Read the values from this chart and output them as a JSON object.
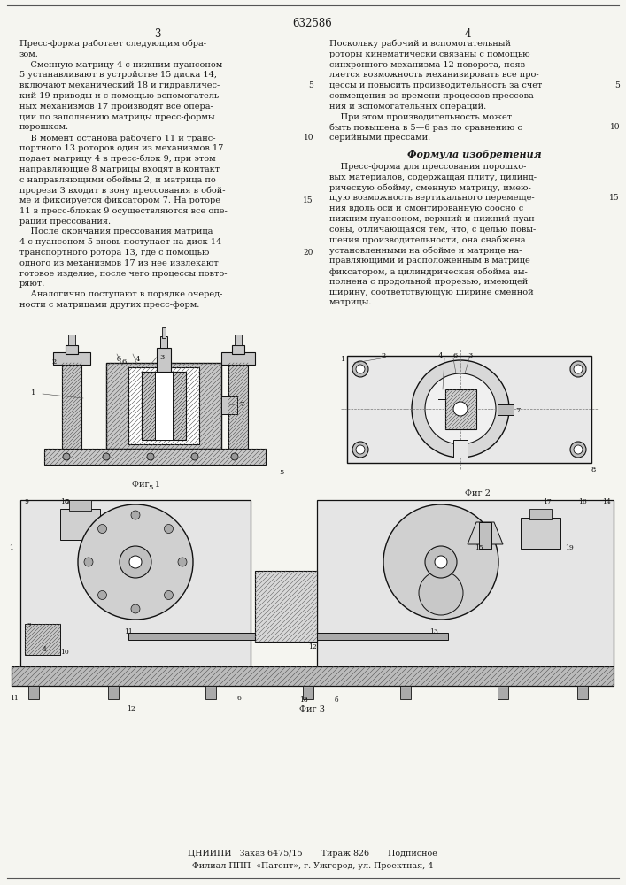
{
  "patent_number": "632586",
  "page_left": "3",
  "page_right": "4",
  "background_color": "#f5f5f0",
  "text_color": "#1a1a1a",
  "col_left_lines": [
    "Пресс-форма работает следующим обра-",
    "зом.",
    "    Сменную матрицу 4 с нижним пуансоном",
    "5 устанавливают в устройстве 15 диска 14,",
    "включают механический 18 и гидравличес-",
    "кий 19 приводы и с помощью вспомогатель-",
    "ных механизмов 17 производят все опера-",
    "ции по заполнению матрицы пресс-формы",
    "порошком.",
    "    В момент останова рабочего 11 и транс-",
    "портного 13 роторов один из механизмов 17",
    "подает матрицу 4 в пресс-блок 9, при этом",
    "направляющие 8 матрицы входят в контакт",
    "с направляющими обоймы 2, и матрица по",
    "прорези 3 входит в зону прессования в обой-",
    "ме и фиксируется фиксатором 7. На роторе",
    "11 в пресс-блоках 9 осуществляются все опе-",
    "рации прессования.",
    "    После окончания прессования матрица",
    "4 с пуансоном 5 вновь поступает на диск 14",
    "транспортного ротора 13, где с помощью",
    "одного из механизмов 17 из нее извлекают",
    "готовое изделие, после чего процессы повто-",
    "ряют.",
    "    Аналогично поступают в порядке очеред-",
    "ности с матрицами других пресс-форм."
  ],
  "col_right_lines_1": [
    "Поскольку рабочий и вспомогательный",
    "роторы кинематически связаны с помощью",
    "синхронного механизма 12 поворота, появ-",
    "ляется возможность механизировать все про-",
    "цессы и повысить производительность за счет",
    "совмещения во времени процессов прессова-",
    "ния и вспомогательных операций.",
    "    При этом производительность может",
    "быть повышена в 5—6 раз по сравнению с",
    "серийными прессами."
  ],
  "formula_title": "Формула изобретения",
  "col_right_lines_2": [
    "    Пресс-форма для прессования порошко-",
    "вых материалов, содержащая плиту, цилинд-",
    "рическую обойму, сменную матрицу, имею-",
    "щую возможность вертикального перемеще-",
    "ния вдоль оси и смонтированную соосно с",
    "нижним пуансоном, верхний и нижний пуан-",
    "соны, отличающаяся тем, что, с целью повы-",
    "шения производительности, она снабжена",
    "установленными на обойме и матрице на-",
    "правляющими и расположенным в матрице",
    "фиксатором, а цилиндрическая обойма вы-",
    "полнена с продольной прорезью, имеющей",
    "ширину, соответствующую ширине сменной",
    "матрицы."
  ],
  "footer_line1": "ЦНИИПИ   Заказ 6475/15       Тираж 826       Подписное",
  "footer_line2": "Филиал ППП  «Патент», г. Ужгород, ул. Проектная, 4"
}
